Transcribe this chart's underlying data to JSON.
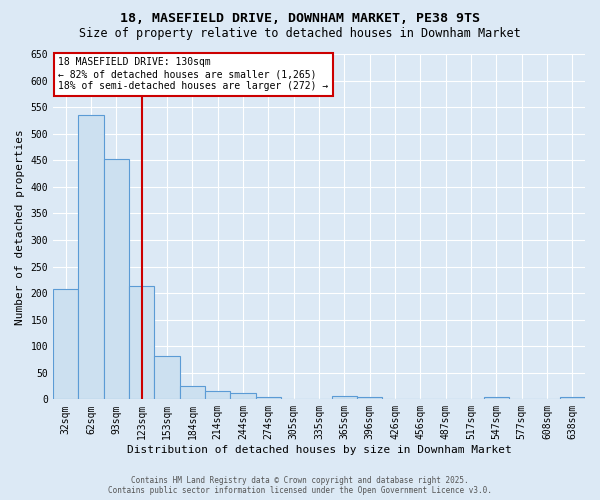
{
  "title": "18, MASEFIELD DRIVE, DOWNHAM MARKET, PE38 9TS",
  "subtitle": "Size of property relative to detached houses in Downham Market",
  "xlabel": "Distribution of detached houses by size in Downham Market",
  "ylabel": "Number of detached properties",
  "categories": [
    "32sqm",
    "62sqm",
    "93sqm",
    "123sqm",
    "153sqm",
    "184sqm",
    "214sqm",
    "244sqm",
    "274sqm",
    "305sqm",
    "335sqm",
    "365sqm",
    "396sqm",
    "426sqm",
    "456sqm",
    "487sqm",
    "517sqm",
    "547sqm",
    "577sqm",
    "608sqm",
    "638sqm"
  ],
  "values": [
    207,
    535,
    453,
    213,
    82,
    25,
    15,
    12,
    5,
    1,
    1,
    6,
    4,
    0,
    0,
    0,
    0,
    4,
    0,
    0,
    5
  ],
  "bar_color": "#cce0f0",
  "bar_edge_color": "#5b9bd5",
  "ylim": [
    0,
    650
  ],
  "yticks": [
    0,
    50,
    100,
    150,
    200,
    250,
    300,
    350,
    400,
    450,
    500,
    550,
    600,
    650
  ],
  "red_line_index": 3,
  "red_line_color": "#cc0000",
  "annotation_text": "18 MASEFIELD DRIVE: 130sqm\n← 82% of detached houses are smaller (1,265)\n18% of semi-detached houses are larger (272) →",
  "annotation_box_color": "#ffffff",
  "annotation_box_edge_color": "#cc0000",
  "background_color": "#dce9f5",
  "plot_bg_color": "#dce9f5",
  "footer_line1": "Contains HM Land Registry data © Crown copyright and database right 2025.",
  "footer_line2": "Contains public sector information licensed under the Open Government Licence v3.0.",
  "title_fontsize": 9.5,
  "subtitle_fontsize": 8.5,
  "tick_fontsize": 7,
  "ylabel_fontsize": 8,
  "xlabel_fontsize": 8,
  "annotation_fontsize": 7,
  "footer_fontsize": 5.5
}
